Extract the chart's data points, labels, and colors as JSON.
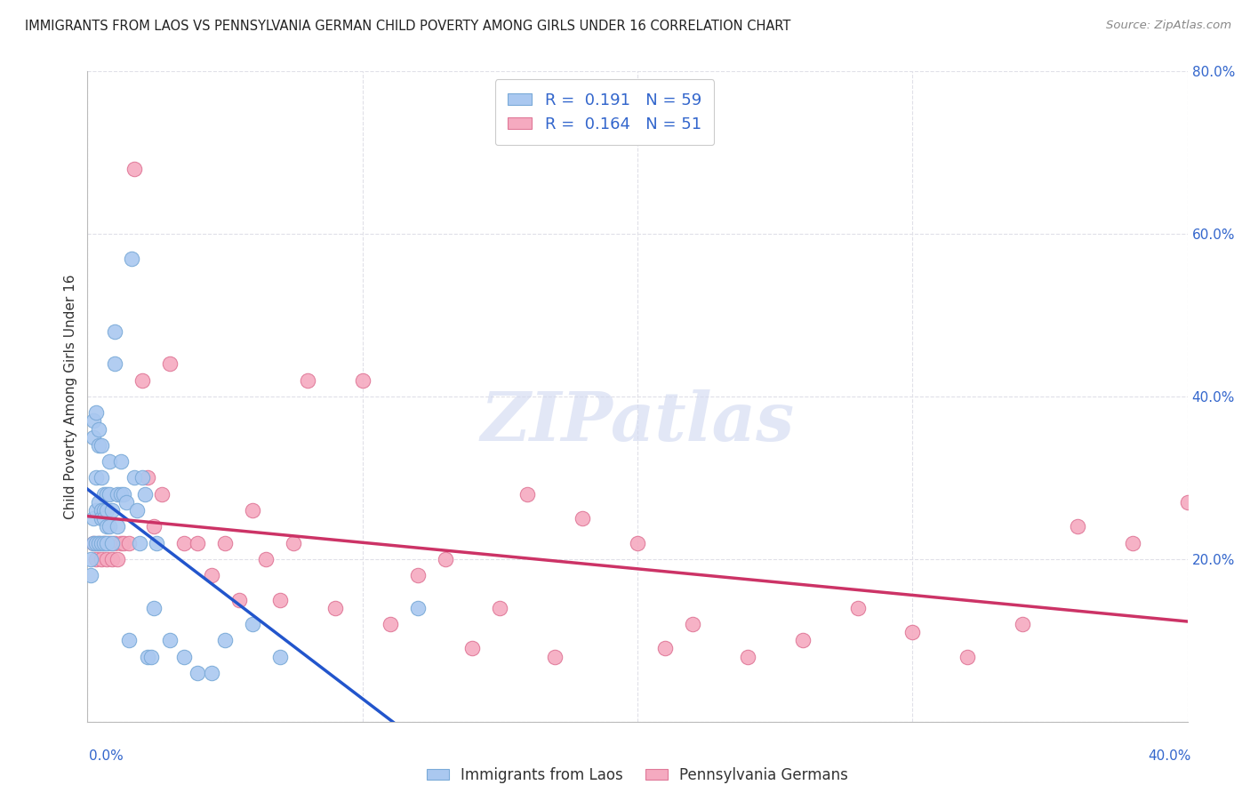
{
  "title": "IMMIGRANTS FROM LAOS VS PENNSYLVANIA GERMAN CHILD POVERTY AMONG GIRLS UNDER 16 CORRELATION CHART",
  "source": "Source: ZipAtlas.com",
  "ylabel": "Child Poverty Among Girls Under 16",
  "xlim": [
    0.0,
    0.4
  ],
  "ylim": [
    0.0,
    0.8
  ],
  "yticks": [
    0.0,
    0.2,
    0.4,
    0.6,
    0.8
  ],
  "ytick_labels": [
    "",
    "20.0%",
    "40.0%",
    "60.0%",
    "80.0%"
  ],
  "xtick_labels_bottom": [
    "0.0%",
    "40.0%"
  ],
  "background_color": "#ffffff",
  "grid_color": "#e0e0e8",
  "series1_color": "#aac8f0",
  "series1_edge": "#7aaad8",
  "series2_color": "#f5aac0",
  "series2_edge": "#e07898",
  "series1_label": "Immigrants from Laos",
  "series2_label": "Pennsylvania Germans",
  "R1": 0.191,
  "N1": 59,
  "R2": 0.164,
  "N2": 51,
  "trend1_color": "#2255cc",
  "trend2_color": "#cc3366",
  "trend_dash_color": "#9999bb",
  "series1_x": [
    0.001,
    0.001,
    0.002,
    0.002,
    0.002,
    0.002,
    0.003,
    0.003,
    0.003,
    0.003,
    0.004,
    0.004,
    0.004,
    0.004,
    0.005,
    0.005,
    0.005,
    0.005,
    0.005,
    0.006,
    0.006,
    0.006,
    0.006,
    0.007,
    0.007,
    0.007,
    0.007,
    0.008,
    0.008,
    0.008,
    0.009,
    0.009,
    0.01,
    0.01,
    0.011,
    0.011,
    0.012,
    0.012,
    0.013,
    0.014,
    0.015,
    0.016,
    0.017,
    0.018,
    0.019,
    0.02,
    0.021,
    0.022,
    0.023,
    0.024,
    0.025,
    0.03,
    0.035,
    0.04,
    0.045,
    0.05,
    0.06,
    0.07,
    0.12
  ],
  "series1_y": [
    0.2,
    0.18,
    0.37,
    0.35,
    0.25,
    0.22,
    0.38,
    0.3,
    0.26,
    0.22,
    0.36,
    0.34,
    0.27,
    0.22,
    0.34,
    0.3,
    0.26,
    0.25,
    0.22,
    0.28,
    0.26,
    0.25,
    0.22,
    0.28,
    0.26,
    0.24,
    0.22,
    0.32,
    0.28,
    0.24,
    0.26,
    0.22,
    0.48,
    0.44,
    0.28,
    0.24,
    0.32,
    0.28,
    0.28,
    0.27,
    0.1,
    0.57,
    0.3,
    0.26,
    0.22,
    0.3,
    0.28,
    0.08,
    0.08,
    0.14,
    0.22,
    0.1,
    0.08,
    0.06,
    0.06,
    0.1,
    0.12,
    0.08,
    0.14
  ],
  "series2_x": [
    0.002,
    0.003,
    0.004,
    0.005,
    0.006,
    0.007,
    0.008,
    0.009,
    0.01,
    0.011,
    0.012,
    0.013,
    0.015,
    0.017,
    0.02,
    0.022,
    0.024,
    0.027,
    0.03,
    0.035,
    0.04,
    0.045,
    0.05,
    0.055,
    0.06,
    0.065,
    0.07,
    0.075,
    0.08,
    0.09,
    0.1,
    0.11,
    0.12,
    0.13,
    0.14,
    0.15,
    0.16,
    0.17,
    0.18,
    0.2,
    0.21,
    0.22,
    0.24,
    0.26,
    0.28,
    0.3,
    0.32,
    0.34,
    0.36,
    0.38,
    0.4
  ],
  "series2_y": [
    0.22,
    0.2,
    0.22,
    0.2,
    0.22,
    0.2,
    0.22,
    0.2,
    0.22,
    0.2,
    0.22,
    0.22,
    0.22,
    0.68,
    0.42,
    0.3,
    0.24,
    0.28,
    0.44,
    0.22,
    0.22,
    0.18,
    0.22,
    0.15,
    0.26,
    0.2,
    0.15,
    0.22,
    0.42,
    0.14,
    0.42,
    0.12,
    0.18,
    0.2,
    0.09,
    0.14,
    0.28,
    0.08,
    0.25,
    0.22,
    0.09,
    0.12,
    0.08,
    0.1,
    0.14,
    0.11,
    0.08,
    0.12,
    0.24,
    0.22,
    0.27
  ]
}
